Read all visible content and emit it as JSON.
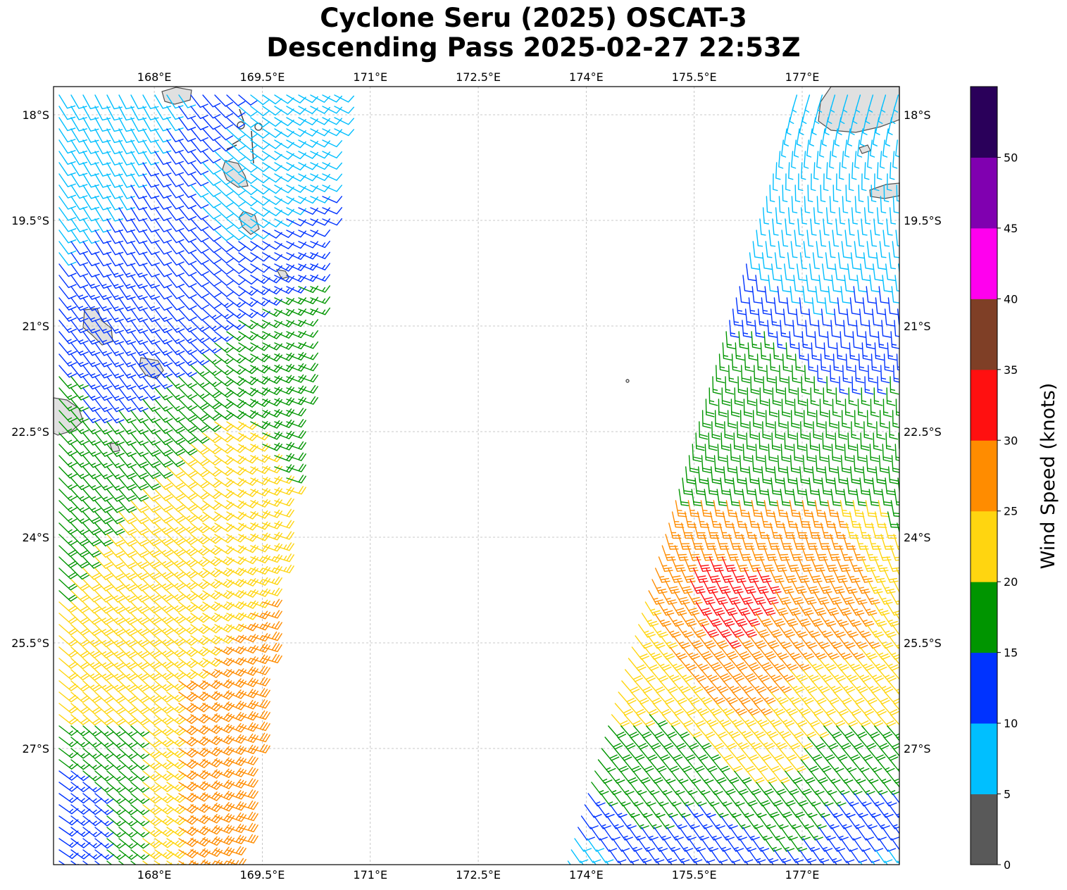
{
  "figure": {
    "title_line1": "Cyclone Seru (2025) OSCAT-3",
    "title_line2": "Descending Pass 2025-02-27 22:53Z"
  },
  "map": {
    "lon_range": [
      166.6,
      178.35
    ],
    "lat_range": [
      -28.65,
      -17.6
    ],
    "lon_ticks": [
      168,
      169.5,
      171,
      172.5,
      174,
      175.5,
      177
    ],
    "lon_tick_labels": [
      "168°E",
      "169.5°E",
      "171°E",
      "172.5°E",
      "174°E",
      "175.5°E",
      "177°E"
    ],
    "lat_ticks": [
      -18,
      -19.5,
      -21,
      -22.5,
      -24,
      -25.5,
      -27
    ],
    "lat_tick_labels": [
      "18°S",
      "19.5°S",
      "21°S",
      "22.5°S",
      "24°S",
      "25.5°S",
      "27°S"
    ],
    "gridlines": true,
    "land_color": "#e0e0e0",
    "coastline_color": "#505050"
  },
  "colorbar": {
    "label": "Wind Speed (knots)",
    "tick_labels": [
      "0",
      "5",
      "10",
      "15",
      "20",
      "25",
      "30",
      "35",
      "40",
      "45",
      "50"
    ],
    "bins": [
      {
        "min": 0,
        "max": 5,
        "color": "#595959"
      },
      {
        "min": 5,
        "max": 10,
        "color": "#00bfff"
      },
      {
        "min": 10,
        "max": 15,
        "color": "#0033ff"
      },
      {
        "min": 15,
        "max": 20,
        "color": "#009500"
      },
      {
        "min": 20,
        "max": 25,
        "color": "#ffd510"
      },
      {
        "min": 25,
        "max": 30,
        "color": "#ff8c00"
      },
      {
        "min": 30,
        "max": 35,
        "color": "#ff1010"
      },
      {
        "min": 35,
        "max": 40,
        "color": "#7f3f26"
      },
      {
        "min": 40,
        "max": 45,
        "color": "#ff00ee"
      },
      {
        "min": 45,
        "max": 50,
        "color": "#8000b0"
      },
      {
        "min": 50,
        "max": 55,
        "color": "#2a005a"
      }
    ]
  },
  "chart_data": {
    "type": "scatter",
    "title": "Cyclone Seru (2025) OSCAT-3 Descending Pass 2025-02-27 22:53Z",
    "xlabel": "",
    "ylabel": "",
    "xlim": [
      166.6,
      178.35
    ],
    "ylim": [
      -28.65,
      -17.6
    ],
    "grid": true,
    "value_label": "Wind Speed (knots)",
    "swaths": [
      {
        "lon_west": 166.6,
        "lon_east": 170.3,
        "lat_north": -17.6,
        "lat_south": -28.65
      },
      {
        "lon_west": 174.9,
        "lon_east": 178.35,
        "lat_north": -17.6,
        "lat_south": -28.65
      }
    ],
    "islands": [
      {
        "lon": 167.35,
        "lat": -20.85
      },
      {
        "lon": 167.95,
        "lat": -21.45
      },
      {
        "lon": 169.2,
        "lat": -18.8
      },
      {
        "lon": 169.35,
        "lat": -19.5
      },
      {
        "lon": 169.6,
        "lat": -20.15
      },
      {
        "lon": 174.65,
        "lat": -21.7
      }
    ]
  }
}
